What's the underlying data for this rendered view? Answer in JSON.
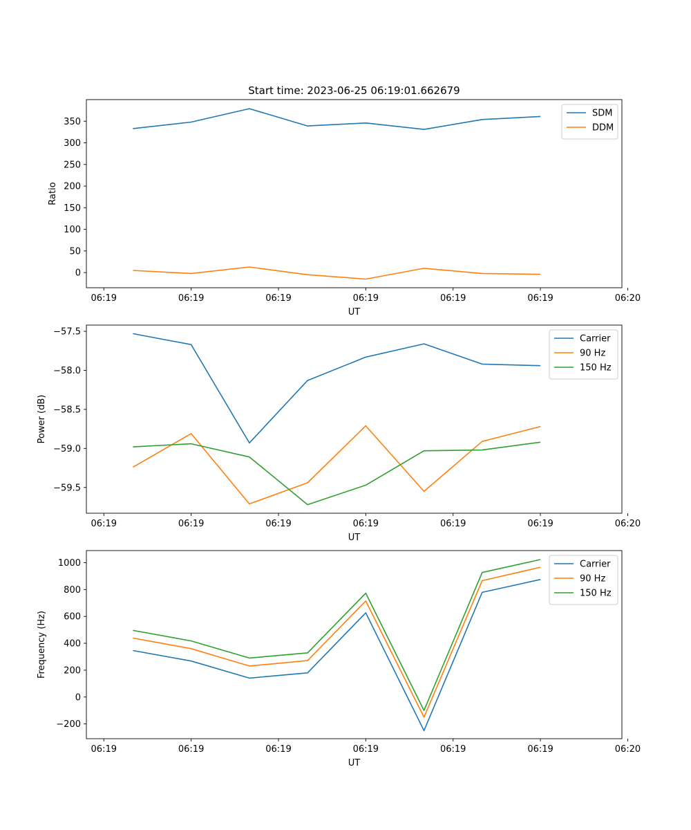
{
  "figure": {
    "title": "Start time: 2023-06-25 06:19:01.662679"
  },
  "colors": {
    "blue": "#1f77b4",
    "orange": "#ff7f0e",
    "green": "#2ca02c"
  },
  "chart_data": [
    {
      "type": "line",
      "title": "Start time: 2023-06-25 06:19:01.662679",
      "xlabel": "UT",
      "ylabel": "Ratio",
      "x": [
        1,
        2,
        3,
        4,
        5,
        6,
        7,
        8
      ],
      "xlim": [
        0.2,
        9.4
      ],
      "x_ticks": [
        0.5,
        2,
        3.5,
        5,
        6.5,
        8,
        9.5
      ],
      "x_tick_labels": [
        "06:19",
        "06:19",
        "06:19",
        "06:19",
        "06:19",
        "06:19",
        "06:20"
      ],
      "ylim": [
        -35,
        400
      ],
      "y_ticks": [
        0,
        50,
        100,
        150,
        200,
        250,
        300,
        350
      ],
      "y_tick_labels": [
        "0",
        "50",
        "100",
        "150",
        "200",
        "250",
        "300",
        "350"
      ],
      "legend": "top-right",
      "grid": false,
      "series": [
        {
          "name": "SDM",
          "color": "#1f77b4",
          "values": [
            333,
            348,
            379,
            339,
            346,
            331,
            354,
            361
          ]
        },
        {
          "name": "DDM",
          "color": "#ff7f0e",
          "values": [
            5,
            -2,
            13,
            -5,
            -15,
            10,
            -2,
            -4
          ]
        }
      ]
    },
    {
      "type": "line",
      "title": "",
      "xlabel": "UT",
      "ylabel": "Power (dB)",
      "x": [
        1,
        2,
        3,
        4,
        5,
        6,
        7,
        8
      ],
      "xlim": [
        0.2,
        9.4
      ],
      "x_ticks": [
        0.5,
        2,
        3.5,
        5,
        6.5,
        8,
        9.5
      ],
      "x_tick_labels": [
        "06:19",
        "06:19",
        "06:19",
        "06:19",
        "06:19",
        "06:19",
        "06:20"
      ],
      "ylim": [
        -59.83,
        -57.42
      ],
      "y_ticks": [
        -59.5,
        -59.0,
        -58.5,
        -58.0,
        -57.5
      ],
      "y_tick_labels": [
        "−59.5",
        "−59.0",
        "−58.5",
        "−58.0",
        "−57.5"
      ],
      "legend": "top-right",
      "grid": false,
      "series": [
        {
          "name": "Carrier",
          "color": "#1f77b4",
          "values": [
            -57.53,
            -57.67,
            -58.93,
            -58.13,
            -57.83,
            -57.66,
            -57.92,
            -57.94
          ]
        },
        {
          "name": "90 Hz",
          "color": "#ff7f0e",
          "values": [
            -59.24,
            -58.81,
            -59.71,
            -59.44,
            -58.71,
            -59.55,
            -58.91,
            -58.72
          ]
        },
        {
          "name": "150 Hz",
          "color": "#2ca02c",
          "values": [
            -58.98,
            -58.94,
            -59.11,
            -59.72,
            -59.47,
            -59.03,
            -59.02,
            -58.92
          ]
        }
      ]
    },
    {
      "type": "line",
      "title": "",
      "xlabel": "UT",
      "ylabel": "Frequency (Hz)",
      "x": [
        1,
        2,
        3,
        4,
        5,
        6,
        7,
        8
      ],
      "xlim": [
        0.2,
        9.4
      ],
      "x_ticks": [
        0.5,
        2,
        3.5,
        5,
        6.5,
        8,
        9.5
      ],
      "x_tick_labels": [
        "06:19",
        "06:19",
        "06:19",
        "06:19",
        "06:19",
        "06:19",
        "06:20"
      ],
      "ylim": [
        -310,
        1090
      ],
      "y_ticks": [
        -200,
        0,
        200,
        400,
        600,
        800,
        1000
      ],
      "y_tick_labels": [
        "−200",
        "0",
        "200",
        "400",
        "600",
        "800",
        "1000"
      ],
      "legend": "top-right",
      "grid": false,
      "series": [
        {
          "name": "Carrier",
          "color": "#1f77b4",
          "values": [
            346,
            268,
            141,
            180,
            627,
            -250,
            779,
            875
          ]
        },
        {
          "name": "90 Hz",
          "color": "#ff7f0e",
          "values": [
            439,
            360,
            231,
            271,
            715,
            -150,
            866,
            966
          ]
        },
        {
          "name": "150 Hz",
          "color": "#2ca02c",
          "values": [
            496,
            418,
            290,
            329,
            773,
            -100,
            927,
            1023
          ]
        }
      ]
    }
  ]
}
